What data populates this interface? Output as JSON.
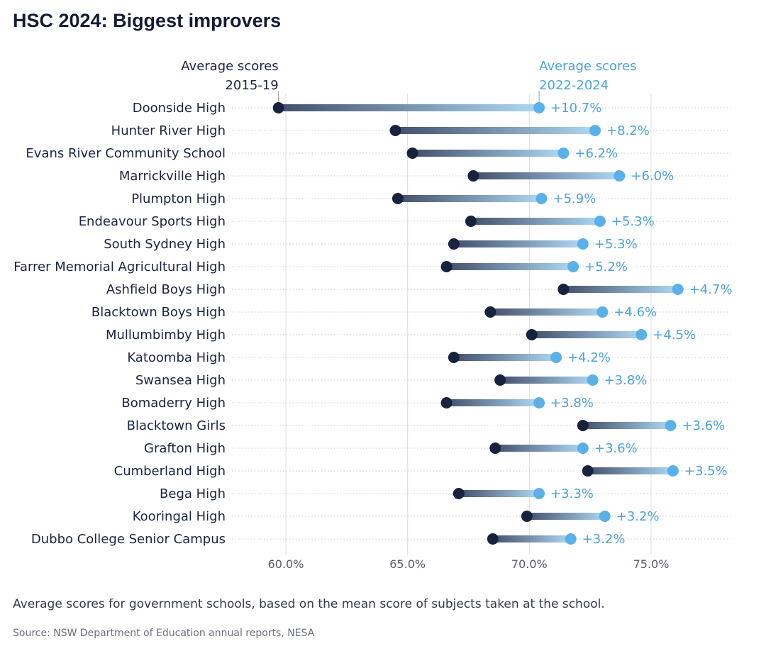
{
  "title": "HSC 2024: Biggest improvers",
  "caption": "Average scores for government schools, based on the mean score of subjects taken at the school.",
  "source": "Source: NSW Department of Education annual reports, NESA",
  "colors": {
    "start": "#17223f",
    "end": "#5ab0e8",
    "label": "#4aa3dc",
    "text": "#1b2440",
    "axis": "#555b6b"
  },
  "chart_data": {
    "type": "dumbbell",
    "title": "HSC 2024: Biggest improvers",
    "series": [
      {
        "name": "Average scores 2015-19",
        "label_lines": [
          "Average scores",
          "2015-19"
        ]
      },
      {
        "name": "Average scores 2022-2024",
        "label_lines": [
          "Average scores",
          "2022-2024"
        ]
      }
    ],
    "x_ticks": [
      60,
      65,
      70,
      75
    ],
    "x_tick_labels": [
      "60.0%",
      "65.0%",
      "70.0%",
      "75.0%"
    ],
    "xlim": [
      57.8,
      78.2
    ],
    "grid": true,
    "rows": [
      {
        "school": "Doonside High",
        "start": 59.7,
        "end": 70.4,
        "change": "+10.7%"
      },
      {
        "school": "Hunter River High",
        "start": 64.5,
        "end": 72.7,
        "change": "+8.2%"
      },
      {
        "school": "Evans River Community School",
        "start": 65.2,
        "end": 71.4,
        "change": "+6.2%"
      },
      {
        "school": "Marrickville High",
        "start": 67.7,
        "end": 73.7,
        "change": "+6.0%"
      },
      {
        "school": "Plumpton High",
        "start": 64.6,
        "end": 70.5,
        "change": "+5.9%"
      },
      {
        "school": "Endeavour Sports High",
        "start": 67.6,
        "end": 72.9,
        "change": "+5.3%"
      },
      {
        "school": "South Sydney High",
        "start": 66.9,
        "end": 72.2,
        "change": "+5.3%"
      },
      {
        "school": "Farrer Memorial Agricultural High",
        "start": 66.6,
        "end": 71.8,
        "change": "+5.2%"
      },
      {
        "school": "Ashfield Boys High",
        "start": 71.4,
        "end": 76.1,
        "change": "+4.7%"
      },
      {
        "school": "Blacktown Boys High",
        "start": 68.4,
        "end": 73.0,
        "change": "+4.6%"
      },
      {
        "school": "Mullumbimby High",
        "start": 70.1,
        "end": 74.6,
        "change": "+4.5%"
      },
      {
        "school": "Katoomba High",
        "start": 66.9,
        "end": 71.1,
        "change": "+4.2%"
      },
      {
        "school": "Swansea High",
        "start": 68.8,
        "end": 72.6,
        "change": "+3.8%"
      },
      {
        "school": "Bomaderry High",
        "start": 66.6,
        "end": 70.4,
        "change": "+3.8%"
      },
      {
        "school": "Blacktown Girls",
        "start": 72.2,
        "end": 75.8,
        "change": "+3.6%"
      },
      {
        "school": "Grafton High",
        "start": 68.6,
        "end": 72.2,
        "change": "+3.6%"
      },
      {
        "school": "Cumberland High",
        "start": 72.4,
        "end": 75.9,
        "change": "+3.5%"
      },
      {
        "school": "Bega High",
        "start": 67.1,
        "end": 70.4,
        "change": "+3.3%"
      },
      {
        "school": "Kooringal High",
        "start": 69.9,
        "end": 73.1,
        "change": "+3.2%"
      },
      {
        "school": "Dubbo College Senior Campus",
        "start": 68.5,
        "end": 71.7,
        "change": "+3.2%"
      }
    ]
  }
}
